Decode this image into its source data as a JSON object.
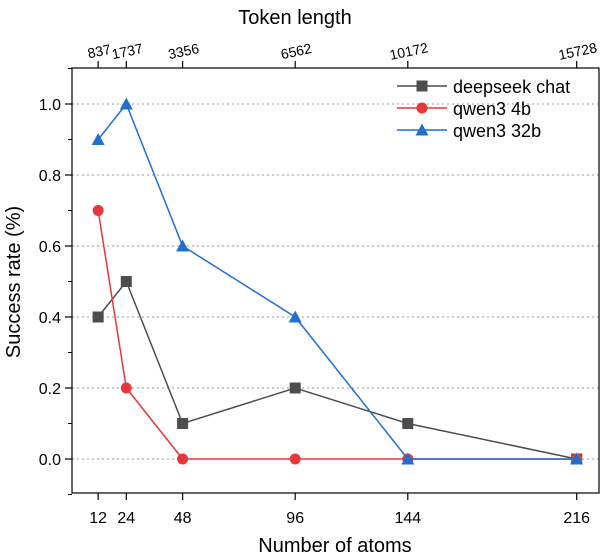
{
  "chart_data": {
    "type": "line",
    "xlabel": "Number of atoms",
    "ylabel": "Success rate (%)",
    "top_axis_label": "Token length",
    "x": [
      12,
      24,
      48,
      96,
      144,
      216
    ],
    "x_tick_labels": [
      "12",
      "24",
      "48",
      "96",
      "144",
      "216"
    ],
    "top_tick_labels": [
      "837",
      "1737",
      "3356",
      "6562",
      "10172",
      "15728"
    ],
    "xlim": [
      0,
      222
    ],
    "ylim": [
      -0.1,
      1.1
    ],
    "y_ticks": [
      0.0,
      0.2,
      0.4,
      0.6,
      0.8,
      1.0
    ],
    "y_tick_labels": [
      "0.0",
      "0.2",
      "0.4",
      "0.6",
      "0.8",
      "1.0"
    ],
    "grid": "horizontal dotted",
    "legend_position": "top-right",
    "series": [
      {
        "name": "deepseek chat",
        "color": "#4d4d4d",
        "marker": "square",
        "values": [
          0.4,
          0.5,
          0.1,
          0.2,
          0.1,
          0.0
        ]
      },
      {
        "name": "qwen3 4b",
        "color": "#e8373a",
        "marker": "circle",
        "values": [
          0.7,
          0.2,
          0.0,
          0.0,
          0.0,
          0.0
        ]
      },
      {
        "name": "qwen3 32b",
        "color": "#1f6fd1",
        "marker": "triangle",
        "values": [
          0.9,
          1.0,
          0.6,
          0.4,
          0.0,
          0.0
        ]
      }
    ]
  }
}
